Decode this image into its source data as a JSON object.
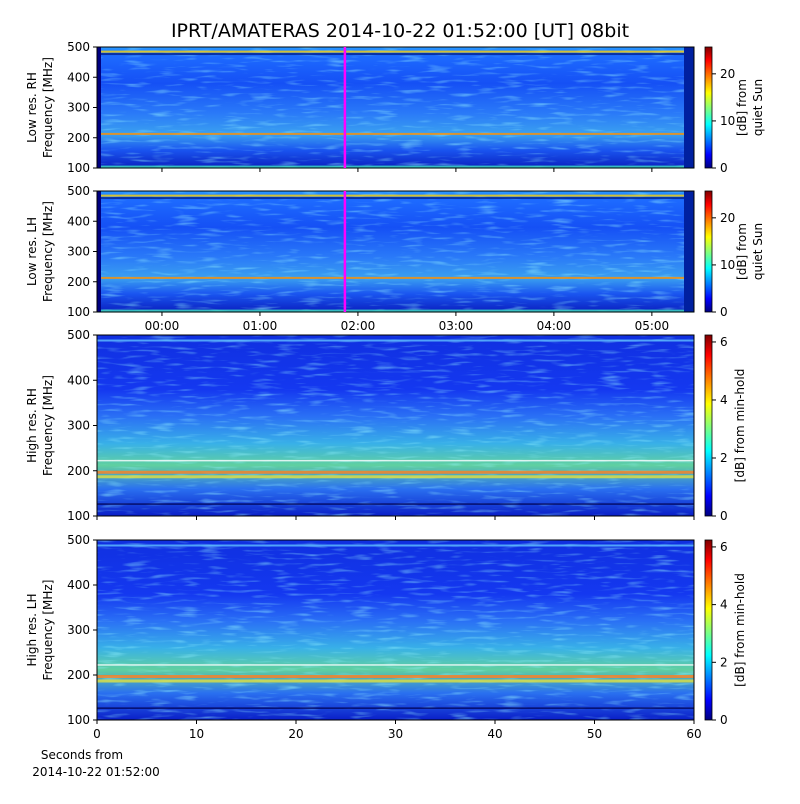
{
  "title": "IPRT/AMATERAS 2014-10-22 01:52:00 [UT]   08bit",
  "chart_data": [
    {
      "type": "spectrogram",
      "ylabel": [
        "Low res. RH",
        "Frequency [MHz]"
      ],
      "xlim": [
        -0.663,
        5.43
      ],
      "ylim": [
        100,
        500
      ],
      "yticks": [
        100,
        200,
        300,
        400,
        500
      ],
      "markers": [
        {
          "x": 1.867,
          "color": "#ff00ff"
        }
      ],
      "colorbar": {
        "label": [
          "[dB] from",
          "quiet Sun"
        ],
        "lim": [
          0,
          25.7
        ],
        "ticks": [
          0,
          10,
          20
        ]
      }
    },
    {
      "type": "spectrogram",
      "ylabel": [
        "Low res. LH",
        "Frequency [MHz]"
      ],
      "xlim": [
        -0.663,
        5.43
      ],
      "ylim": [
        100,
        500
      ],
      "yticks": [
        100,
        200,
        300,
        400,
        500
      ],
      "xticks": [
        {
          "value": 0,
          "label": "00:00"
        },
        {
          "value": 1,
          "label": "01:00"
        },
        {
          "value": 2,
          "label": "02:00"
        },
        {
          "value": 3,
          "label": "03:00"
        },
        {
          "value": 4,
          "label": "04:00"
        },
        {
          "value": 5,
          "label": "05:00"
        }
      ],
      "markers": [
        {
          "x": 1.867,
          "color": "#ff00ff"
        }
      ],
      "colorbar": {
        "label": [
          "[dB] from",
          "quiet Sun"
        ],
        "lim": [
          0,
          25.7
        ],
        "ticks": [
          0,
          10,
          20
        ]
      }
    },
    {
      "type": "spectrogram",
      "ylabel": [
        "High res. RH",
        "Frequency [MHz]"
      ],
      "xlim": [
        0,
        60
      ],
      "ylim": [
        100,
        500
      ],
      "yticks": [
        100,
        200,
        300,
        400,
        500
      ],
      "colorbar": {
        "label": [
          "[dB] from min-hold"
        ],
        "lim": [
          0,
          6.24
        ],
        "ticks": [
          0,
          2,
          4,
          6
        ]
      }
    },
    {
      "type": "spectrogram",
      "ylabel": [
        "High res. LH",
        "Frequency [MHz]"
      ],
      "xlim": [
        0,
        60
      ],
      "ylim": [
        100,
        500
      ],
      "yticks": [
        100,
        200,
        300,
        400,
        500
      ],
      "xticks": [
        0,
        10,
        20,
        30,
        40,
        50,
        60
      ],
      "xlabel": [
        "Seconds from",
        "2014-10-22 01:52:00"
      ],
      "colorbar": {
        "label": [
          "[dB] from min-hold"
        ],
        "lim": [
          0,
          6.24
        ],
        "ticks": [
          0,
          2,
          4,
          6
        ]
      }
    }
  ]
}
